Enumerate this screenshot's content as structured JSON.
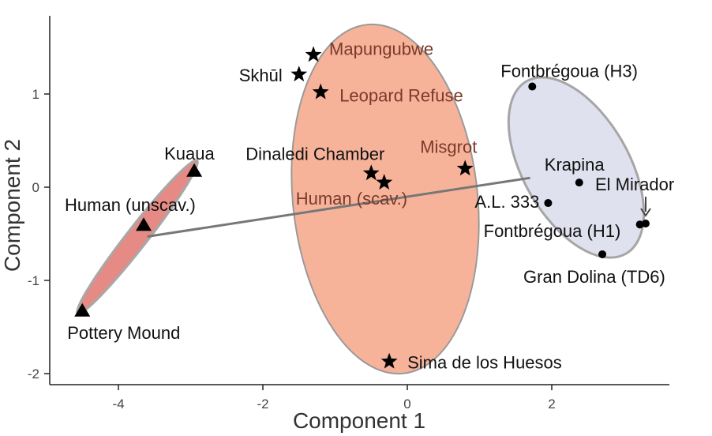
{
  "chart_data": {
    "type": "scatter",
    "xlabel": "Component 1",
    "ylabel": "Component 2",
    "xlim": [
      -5.0,
      3.5
    ],
    "ylim": [
      -2.1,
      1.8
    ],
    "x_ticks": [
      -4,
      -2,
      0,
      2
    ],
    "y_ticks": [
      1,
      0,
      -1,
      -2
    ],
    "grid": false,
    "colors": {
      "scavenged_fill": "#f6b39a",
      "unscavenged_fill": "#c7cbe0",
      "middle_fill": "#e58a84",
      "ellipse_stroke": "#9a9a9a",
      "connector": "#777777",
      "marker": "#000000"
    },
    "groups": [
      {
        "name": "middle",
        "marker": "triangle",
        "points": [
          {
            "label": "Kuaua",
            "x": -2.95,
            "y": 0.18
          },
          {
            "label": "Human (unscav.)",
            "x": -3.65,
            "y": -0.4
          },
          {
            "label": "Pottery Mound",
            "x": -4.5,
            "y": -1.32
          }
        ]
      },
      {
        "name": "scavenged",
        "marker": "star",
        "points": [
          {
            "label": "Mapungubwe",
            "x": -1.3,
            "y": 1.42
          },
          {
            "label": "Skhūl",
            "x": -1.5,
            "y": 1.21
          },
          {
            "label": "Leopard Refuse",
            "x": -1.2,
            "y": 1.02
          },
          {
            "label": "Dinaledi Chamber",
            "x": -0.5,
            "y": 0.15
          },
          {
            "label": "Human (scav.)",
            "x": -0.32,
            "y": 0.05
          },
          {
            "label": "Misgrot",
            "x": 0.8,
            "y": 0.2
          },
          {
            "label": "Sima de los Huesos",
            "x": -0.25,
            "y": -1.87
          }
        ]
      },
      {
        "name": "unscavenged",
        "marker": "circle",
        "points": [
          {
            "label": "Fontbrégoua (H3)",
            "x": 1.73,
            "y": 1.08
          },
          {
            "label": "Krapina",
            "x": 2.38,
            "y": 0.05
          },
          {
            "label": "El Mirador",
            "x": 3.3,
            "y": -0.39
          },
          {
            "label": "A.L. 333",
            "x": 1.95,
            "y": -0.17
          },
          {
            "label": "Fontbrégoua (H1)",
            "x": 3.22,
            "y": -0.4
          },
          {
            "label": "Gran Dolina (TD6)",
            "x": 2.7,
            "y": -0.72
          }
        ]
      }
    ],
    "connector": {
      "from": [
        -3.6,
        -0.53
      ],
      "to": [
        1.7,
        0.1
      ]
    }
  }
}
